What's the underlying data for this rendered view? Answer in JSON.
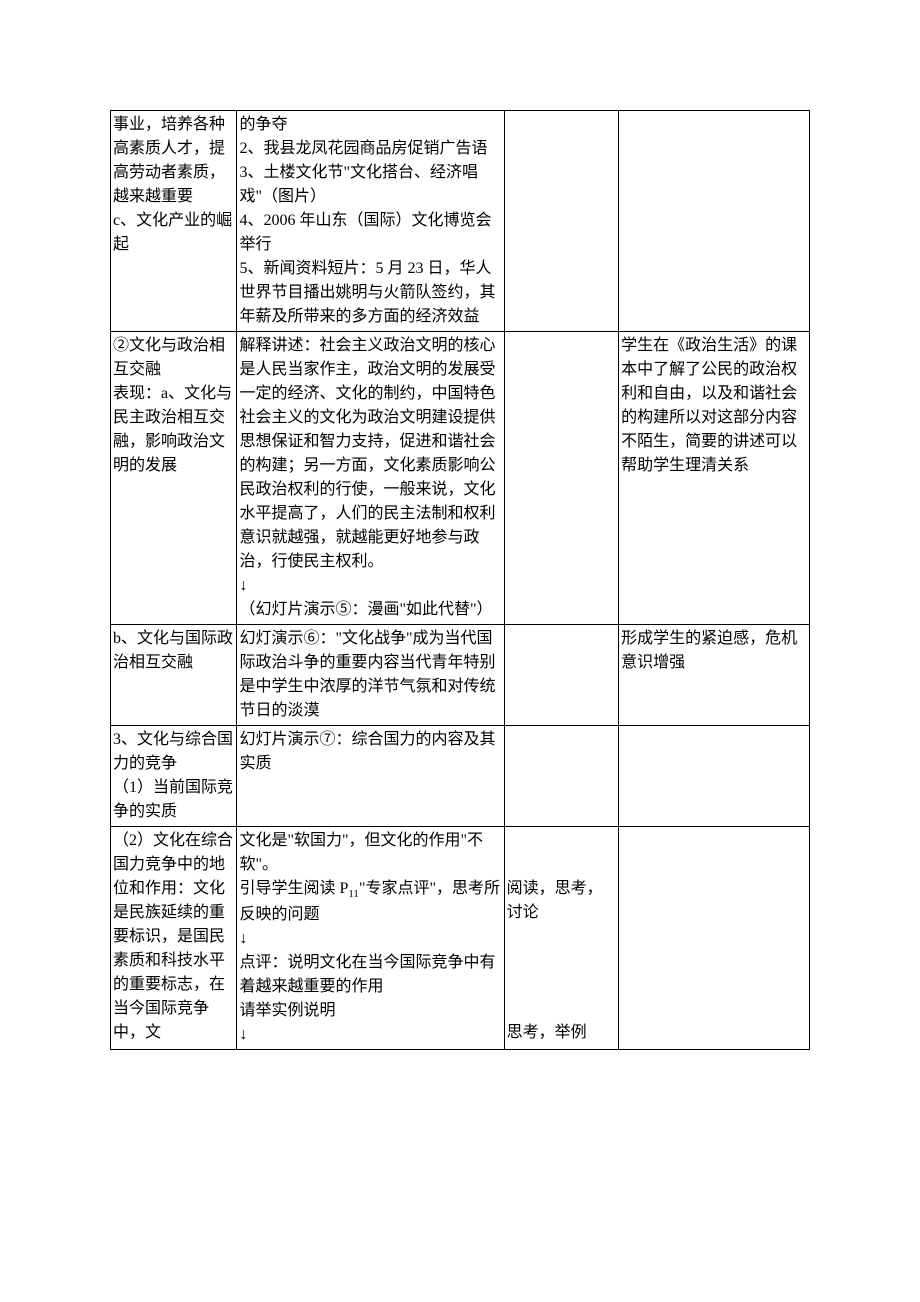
{
  "rows": [
    {
      "c1": "事业，培养各种高素质人才，提高劳动者素质，越来越重要\nc、文化产业的崛起",
      "c2": "的争夺\n2、我县龙凤花园商品房促销广告语\n3、土楼文化节\"文化搭台、经济唱戏\"（图片）\n4、2006 年山东（国际）文化博览会举行\n5、新闻资料短片：5 月 23 日，华人世界节目播出姚明与火箭队签约，其年薪及所带来的多方面的经济效益",
      "c3": "",
      "c4": ""
    },
    {
      "c1": "②文化与政治相互交融\n表现：a、文化与民主政治相互交融，影响政治文明的发展",
      "c2": "解释讲述：社会主义政治文明的核心是人民当家作主，政治文明的发展受一定的经济、文化的制约，中国特色社会主义的文化为政治文明建设提供思想保证和智力支持，促进和谐社会的构建；另一方面，文化素质影响公民政治权利的行使，一般来说，文化水平提高了，人们的民主法制和权利意识就越强，就越能更好地参与政治，行使民主权利。\n↓\n（幻灯片演示⑤：漫画\"如此代替\"）",
      "c3": "",
      "c4": "学生在《政治生活》的课本中了解了公民的政治权利和自由，以及和谐社会的构建所以对这部分内容不陌生，简要的讲述可以帮助学生理清关系"
    },
    {
      "c1": "b、文化与国际政治相互交融",
      "c2": "幻灯演示⑥：\"文化战争\"成为当代国际政治斗争的重要内容当代青年特别是中学生中浓厚的洋节气氛和对传统节日的淡漠",
      "c3": "",
      "c4": "形成学生的紧迫感，危机意识增强"
    },
    {
      "c1": "3、文化与综合国力的竞争\n（1）当前国际竞争的实质",
      "c2": "幻灯片演示⑦：综合国力的内容及其实质",
      "c3": "",
      "c4": ""
    },
    {
      "c1": "（2）文化在综合国力竞争中的地位和作用：文化是民族延续的重要标识，是国民素质和科技水平的重要标志，在当今国际竞争中，文",
      "c2": "文化是\"软国力\"，但文化的作用\"不软\"。\n引导学生阅读 P₁₁\"专家点评\"，思考所反映的问题\n↓\n点评：说明文化在当今国际竞争中有着越来越重要的作用\n请举实例说明\n↓",
      "c3": "\n\n阅读，思考，讨论\n\n\n\n\n思考，举例",
      "c4": ""
    }
  ]
}
